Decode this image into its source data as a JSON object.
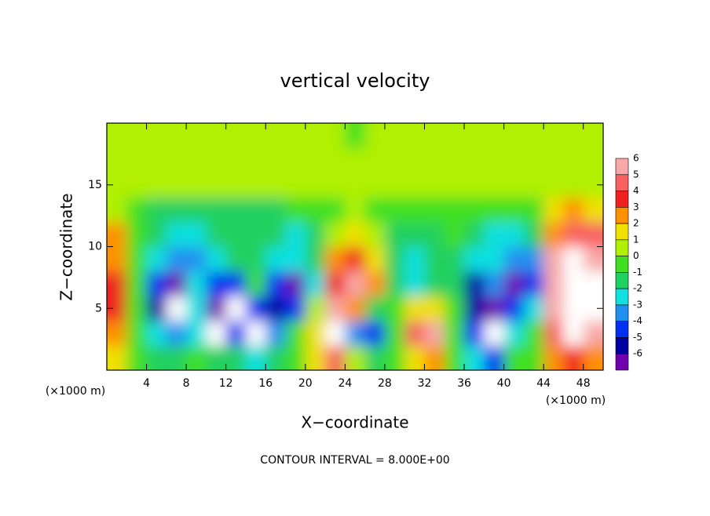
{
  "chart_data": {
    "type": "contour",
    "title": "vertical velocity",
    "x_label": "X−coordinate",
    "y_label": "Z−coordinate",
    "x_unit_left": "(×1000 m)",
    "x_unit_right": "(×1000 m)",
    "annotation": "CONTOUR INTERVAL = 8.000E+00",
    "xlim": [
      0,
      50
    ],
    "ylim": [
      0,
      20
    ],
    "xticks": [
      4,
      8,
      12,
      16,
      20,
      24,
      28,
      32,
      36,
      40,
      44,
      48
    ],
    "yticks": [
      5,
      10,
      15
    ],
    "x": [
      1,
      3,
      5,
      7,
      9,
      11,
      13,
      15,
      17,
      19,
      21,
      23,
      25,
      27,
      29,
      31,
      33,
      35,
      37,
      39,
      41,
      43,
      45,
      47,
      49
    ],
    "y": [
      1,
      3,
      5,
      7,
      9,
      11,
      13,
      15,
      17,
      19
    ],
    "z": [
      [
        2,
        0,
        -1,
        -1,
        0,
        -1,
        -1,
        -2,
        -1,
        0,
        2,
        5,
        1,
        -1,
        0,
        2,
        3,
        0,
        -2,
        -4,
        0,
        0,
        3,
        4,
        3
      ],
      [
        3,
        0,
        -2,
        -3,
        -2,
        -8,
        -4,
        -8,
        -3,
        0,
        2,
        8,
        -3,
        -4,
        0,
        5,
        6,
        0,
        -4,
        -8,
        -2,
        0,
        5,
        8,
        6
      ],
      [
        4,
        0,
        -5,
        -8,
        -2,
        -6,
        -8,
        -4,
        -5,
        -4,
        1,
        6,
        3,
        -1,
        0,
        2,
        2,
        0,
        -5,
        -6,
        -4,
        -2,
        6,
        8,
        8
      ],
      [
        4,
        0,
        -4,
        -6,
        -2,
        -4,
        -4,
        0,
        -4,
        -6,
        -2,
        4,
        6,
        3,
        -1,
        -2,
        -1,
        -0.5,
        -5,
        -3,
        -6,
        -4,
        6,
        8,
        8
      ],
      [
        3,
        0,
        -2,
        -3,
        -3,
        -2,
        -1,
        -1,
        -2,
        -2,
        -1,
        3,
        4,
        2,
        -1,
        -1.5,
        -1,
        -0.5,
        -2,
        -2,
        -3,
        -3,
        6,
        7,
        6
      ],
      [
        3,
        0,
        -1,
        -1.5,
        -2,
        -1,
        -1,
        -0.5,
        -1,
        -1.5,
        -0.5,
        1,
        2,
        1,
        -0.5,
        -1,
        -0.5,
        0,
        -1,
        -1.5,
        -1.5,
        -1,
        3,
        5,
        5
      ],
      [
        1,
        0,
        -0.5,
        -0.5,
        -0.5,
        -0.5,
        -0.5,
        -0.5,
        -0.5,
        0,
        0,
        0,
        1,
        0,
        0,
        0,
        0,
        0,
        0,
        0,
        0,
        0,
        2,
        3,
        2
      ],
      [
        0.5,
        0.5,
        0.5,
        0.5,
        0.5,
        0.5,
        0.5,
        0.5,
        0.5,
        0.5,
        0.5,
        0.5,
        0.5,
        0.5,
        0.5,
        0.5,
        0.5,
        0.5,
        0.5,
        0.5,
        0.5,
        0.5,
        0.5,
        1,
        1
      ],
      [
        0.5,
        0.5,
        0.5,
        0.5,
        0.5,
        0.5,
        0.5,
        0.5,
        0.5,
        0.5,
        0.5,
        0.5,
        0.5,
        0.5,
        0.5,
        0.5,
        0.5,
        0.5,
        0.5,
        0.5,
        0.5,
        0.5,
        0.5,
        0.5,
        1
      ],
      [
        0.5,
        0.5,
        0.5,
        0.5,
        0.5,
        0.5,
        0.5,
        0.5,
        0.5,
        0.5,
        0.5,
        0.5,
        0.3,
        0.5,
        0.5,
        0.5,
        0.5,
        0.5,
        0.5,
        0.5,
        0.5,
        0.5,
        0.5,
        0.5,
        0.5
      ]
    ],
    "colorbar": {
      "ticks": [
        6,
        5,
        4,
        3,
        2,
        1,
        0,
        -1,
        -2,
        -3,
        -4,
        -5,
        -6
      ],
      "colors": [
        "#f8a8a8",
        "#f86060",
        "#f02020",
        "#ff9000",
        "#f0e000",
        "#b0f000",
        "#40e020",
        "#20d060",
        "#10e0e0",
        "#2090f0",
        "#0030f0",
        "#0000a0",
        "#7000b0"
      ]
    }
  }
}
